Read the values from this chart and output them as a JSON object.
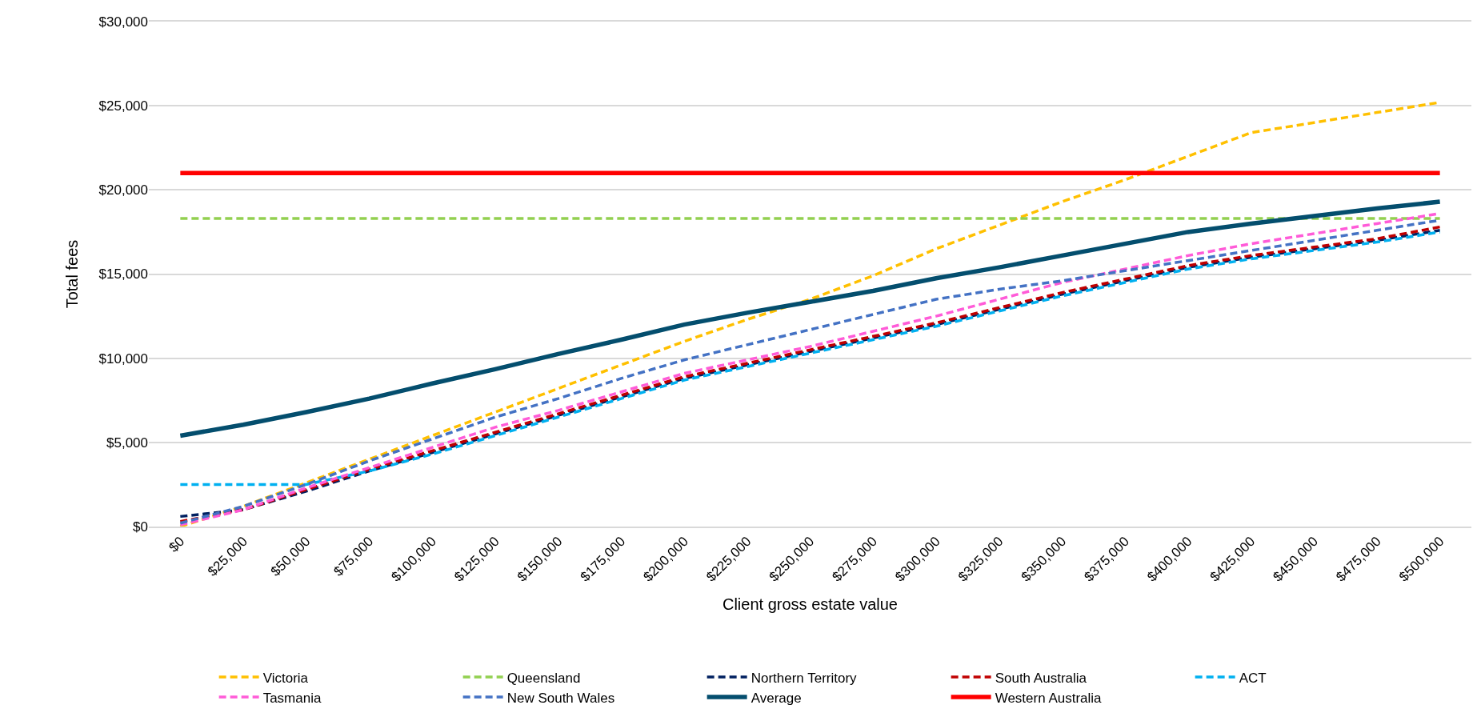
{
  "chart_data": {
    "type": "line",
    "xlabel": "Client gross estate value",
    "ylabel": "Total fees",
    "categories": [
      "$0",
      "$25,000",
      "$50,000",
      "$75,000",
      "$100,000",
      "$125,000",
      "$150,000",
      "$175,000",
      "$200,000",
      "$225,000",
      "$250,000",
      "$275,000",
      "$300,000",
      "$325,000",
      "$350,000",
      "$375,000",
      "$400,000",
      "$425,000",
      "$450,000",
      "$475,000",
      "$500,000"
    ],
    "ylim": [
      0,
      30000
    ],
    "yticks": [
      {
        "value": 0,
        "label": "$0"
      },
      {
        "value": 5000,
        "label": "$5,000"
      },
      {
        "value": 10000,
        "label": "$10,000"
      },
      {
        "value": 15000,
        "label": "$15,000"
      },
      {
        "value": 20000,
        "label": "$20,000"
      },
      {
        "value": 25000,
        "label": "$25,000"
      },
      {
        "value": 30000,
        "label": "$30,000"
      }
    ],
    "grid": "y",
    "legend": "bottom",
    "marker": "none",
    "series": [
      {
        "name": "Victoria",
        "color": "#ffc000",
        "line_style": "dashed",
        "values": [
          0,
          1200,
          2600,
          4000,
          5400,
          6800,
          8200,
          9600,
          11000,
          12300,
          13500,
          14900,
          16500,
          17900,
          19300,
          20600,
          22000,
          23400,
          24000,
          24600,
          25200
        ]
      },
      {
        "name": "Queensland",
        "color": "#92d050",
        "line_style": "dashed",
        "values": [
          18300,
          18300,
          18300,
          18300,
          18300,
          18300,
          18300,
          18300,
          18300,
          18300,
          18300,
          18300,
          18300,
          18300,
          18300,
          18300,
          18300,
          18300,
          18300,
          18300,
          18300
        ]
      },
      {
        "name": "Northern Territory",
        "color": "#002060",
        "line_style": "dashed",
        "values": [
          600,
          1000,
          2100,
          3300,
          4400,
          5500,
          6600,
          7700,
          8800,
          9600,
          10400,
          11200,
          12000,
          12900,
          13800,
          14600,
          15400,
          16000,
          16500,
          17000,
          17600
        ]
      },
      {
        "name": "South Australia",
        "color": "#c00000",
        "line_style": "dashed",
        "values": [
          300,
          1000,
          2200,
          3400,
          4500,
          5600,
          6700,
          7800,
          8900,
          9700,
          10500,
          11300,
          12100,
          13000,
          13900,
          14700,
          15500,
          16100,
          16600,
          17100,
          17800
        ]
      },
      {
        "name": "ACT",
        "color": "#00b0f0",
        "line_style": "dashed",
        "values": [
          2500,
          2500,
          2500,
          3300,
          4300,
          5400,
          6500,
          7600,
          8700,
          9500,
          10300,
          11100,
          11900,
          12800,
          13700,
          14500,
          15300,
          15900,
          16400,
          16900,
          17500
        ]
      },
      {
        "name": "Tasmania",
        "color": "#ff5bd8",
        "line_style": "dashed",
        "values": [
          100,
          1000,
          2300,
          3500,
          4700,
          5900,
          6900,
          8000,
          9100,
          9900,
          10700,
          11600,
          12500,
          13500,
          14500,
          15300,
          16100,
          16800,
          17400,
          18000,
          18600
        ]
      },
      {
        "name": "New South Wales",
        "color": "#4472c4",
        "line_style": "dashed",
        "values": [
          200,
          1200,
          2500,
          3900,
          5200,
          6500,
          7600,
          8800,
          9900,
          10800,
          11700,
          12600,
          13500,
          14100,
          14600,
          15200,
          15800,
          16400,
          17000,
          17600,
          18200
        ]
      },
      {
        "name": "Average",
        "color": "#044e6e",
        "line_style": "solid",
        "values": [
          5400,
          6050,
          6800,
          7600,
          8500,
          9350,
          10250,
          11100,
          12000,
          12700,
          13350,
          14000,
          14750,
          15400,
          16100,
          16800,
          17500,
          18000,
          18450,
          18900,
          19300
        ]
      },
      {
        "name": "Western Australia",
        "color": "#ff0000",
        "line_style": "solid",
        "values": [
          21000,
          21000,
          21000,
          21000,
          21000,
          21000,
          21000,
          21000,
          21000,
          21000,
          21000,
          21000,
          21000,
          21000,
          21000,
          21000,
          21000,
          21000,
          21000,
          21000,
          21000
        ]
      }
    ]
  }
}
